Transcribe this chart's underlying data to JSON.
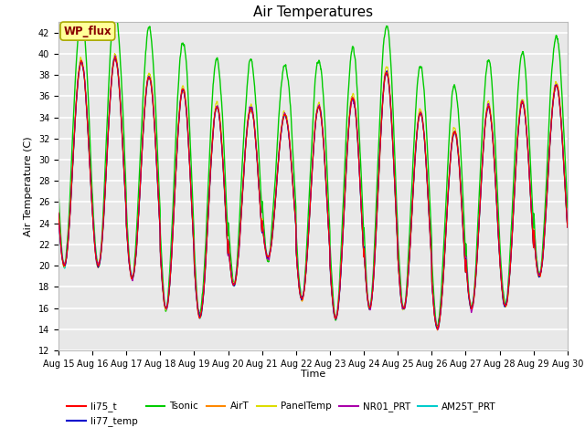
{
  "title": "Air Temperatures",
  "xlabel": "Time",
  "ylabel": "Air Temperature (C)",
  "ylim": [
    12,
    43
  ],
  "yticks": [
    12,
    14,
    16,
    18,
    20,
    22,
    24,
    26,
    28,
    30,
    32,
    34,
    36,
    38,
    40,
    42
  ],
  "n_days": 15,
  "pts_per_day": 144,
  "series": {
    "li75_t": {
      "color": "#ff0000",
      "lw": 0.8
    },
    "li77_temp": {
      "color": "#0000cc",
      "lw": 0.8
    },
    "Tsonic": {
      "color": "#00cc00",
      "lw": 1.0
    },
    "AirT": {
      "color": "#ff8800",
      "lw": 0.8
    },
    "PanelTemp": {
      "color": "#dddd00",
      "lw": 0.8
    },
    "NR01_PRT": {
      "color": "#aa00aa",
      "lw": 0.8
    },
    "AM25T_PRT": {
      "color": "#00cccc",
      "lw": 1.0
    }
  },
  "day_labels": [
    "Aug 15",
    "Aug 16",
    "Aug 17",
    "Aug 18",
    "Aug 19",
    "Aug 20",
    "Aug 21",
    "Aug 22",
    "Aug 23",
    "Aug 24",
    "Aug 25",
    "Aug 26",
    "Aug 27",
    "Aug 28",
    "Aug 29",
    "Aug 30"
  ],
  "legend_label": "WP_flux",
  "legend_box_facecolor": "#ffff99",
  "legend_text_color": "#880000",
  "legend_edge_color": "#aaaa00",
  "background_color": "#e8e8e8",
  "grid_color": "#ffffff",
  "title_fontsize": 11,
  "tick_fontsize": 7,
  "axis_label_fontsize": 8
}
